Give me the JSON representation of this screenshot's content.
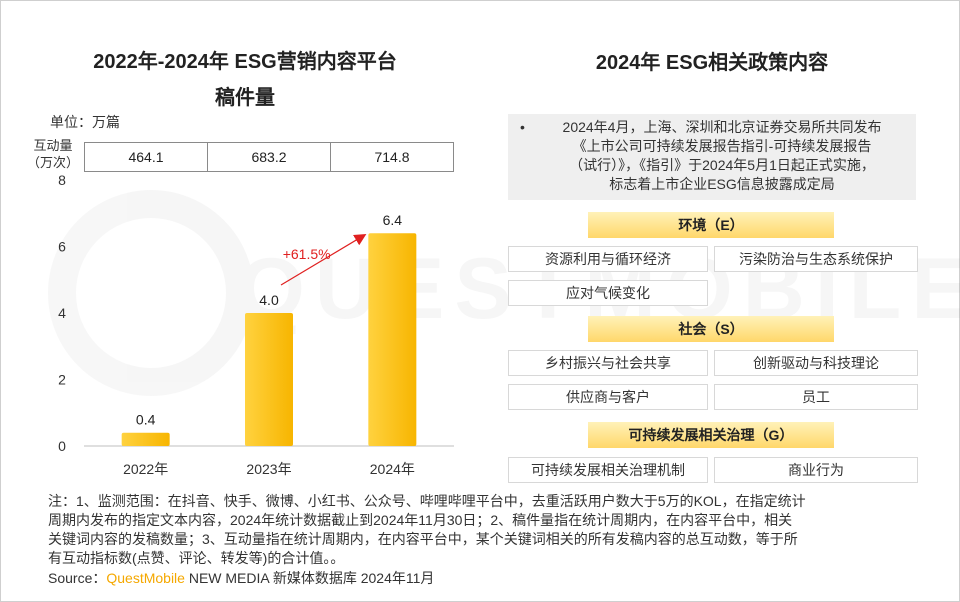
{
  "left_title_line1": "2022年-2024年 ESG营销内容平台",
  "left_title_line2": "稿件量",
  "unit_label": "单位：万篇",
  "interaction_label_line1": "互动量",
  "interaction_label_line2": "（万次）",
  "interaction_values": [
    "464.1",
    "683.2",
    "714.8"
  ],
  "chart_data": {
    "type": "bar",
    "categories": [
      "2022年",
      "2023年",
      "2024年"
    ],
    "values": [
      0.4,
      4.0,
      6.4
    ],
    "value_labels": [
      "0.4",
      "4.0",
      "6.4"
    ],
    "y_ticks": [
      "0",
      "2",
      "4",
      "6",
      "8"
    ],
    "ylim": [
      0,
      8
    ],
    "growth_annotation": "+61.5%",
    "bar_color": "#ffc20e",
    "annotation_color": "#e02020",
    "grid": false
  },
  "right_title": "2024年 ESG相关政策内容",
  "policy_bullet": "•",
  "policy_lines": [
    "2024年4月，上海、深圳和北京证券交易所共同发布",
    "《上市公司可持续发展报告指引-可持续发展报告",
    "（试行）》，《指引》于2024年5月1日起正式实施，",
    "标志着上市企业ESG信息披露成定局"
  ],
  "sections": {
    "env": {
      "header": "环境（E）",
      "tags": [
        "资源利用与循环经济",
        "污染防治与生态系统保护",
        "应对气候变化"
      ]
    },
    "social": {
      "header": "社会（S）",
      "tags": [
        "乡村振兴与社会共享",
        "创新驱动与科技理论",
        "供应商与客户",
        "员工"
      ]
    },
    "gov": {
      "header": "可持续发展相关治理（G）",
      "tags": [
        "可持续发展相关治理机制",
        "商业行为"
      ]
    }
  },
  "note_lines": [
    "注：1、监测范围：在抖音、快手、微博、小红书、公众号、哔哩哔哩平台中，去重活跃用户数大于5万的KOL，在指定统计",
    "周期内发布的指定文本内容，2024年统计数据截止到2024年11月30日；2、稿件量指在统计周期内，在内容平台中，相关",
    "关键词内容的发稿数量；3、互动量指在统计周期内，在内容平台中，某个关键词相关的所有发稿内容的总互动数，等于所",
    "有互动指标数(点赞、评论、转发等)的合计值。。"
  ],
  "source_prefix": "Source：",
  "source_brand": "QuestMobile",
  "source_suffix": " NEW MEDIA 新媒体数据库 2024年11月",
  "watermark_text": "QUESTMOBILE"
}
